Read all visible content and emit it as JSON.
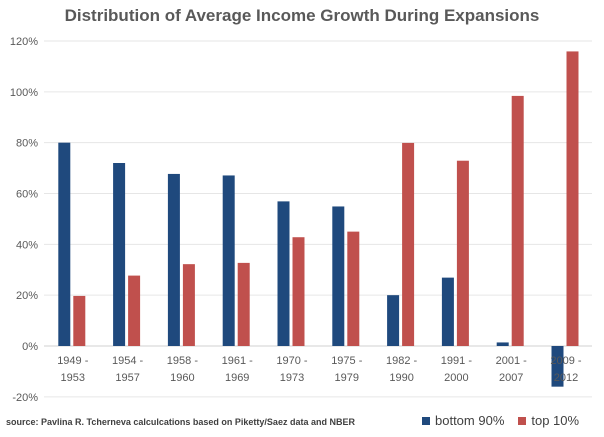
{
  "chart_data": {
    "type": "bar",
    "title": "Distribution of Average Income Growth During Expansions",
    "categories": [
      [
        "1949 -",
        "1953"
      ],
      [
        "1954 -",
        "1957"
      ],
      [
        "1958 -",
        "1960"
      ],
      [
        "1961 -",
        "1969"
      ],
      [
        "1970 -",
        "1973"
      ],
      [
        "1975 -",
        "1979"
      ],
      [
        "1982 -",
        "1990"
      ],
      [
        "1991 -",
        "2000"
      ],
      [
        "2001 -",
        "2007"
      ],
      [
        "2009 -",
        "2012"
      ]
    ],
    "series": [
      {
        "name": "bottom 90%",
        "color": "#1f497d",
        "values": [
          80,
          72,
          67.7,
          67.1,
          56.9,
          54.9,
          20,
          26.9,
          1.4,
          -16
        ]
      },
      {
        "name": "top 10%",
        "color": "#c0504d",
        "values": [
          19.7,
          27.7,
          32.2,
          32.7,
          42.8,
          45,
          79.9,
          72.9,
          98.4,
          115.9
        ]
      }
    ],
    "ylim": [
      -20,
      120
    ],
    "yticks": [
      "-20%",
      "0%",
      "20%",
      "40%",
      "60%",
      "80%",
      "100%",
      "120%"
    ],
    "ytick_values": [
      -20,
      0,
      20,
      40,
      60,
      80,
      100,
      120
    ],
    "grid": true,
    "legend_position": "bottom-right",
    "source": "source: Pavlina R. Tcherneva calculcations based on Piketty/Saez data and NBER"
  }
}
